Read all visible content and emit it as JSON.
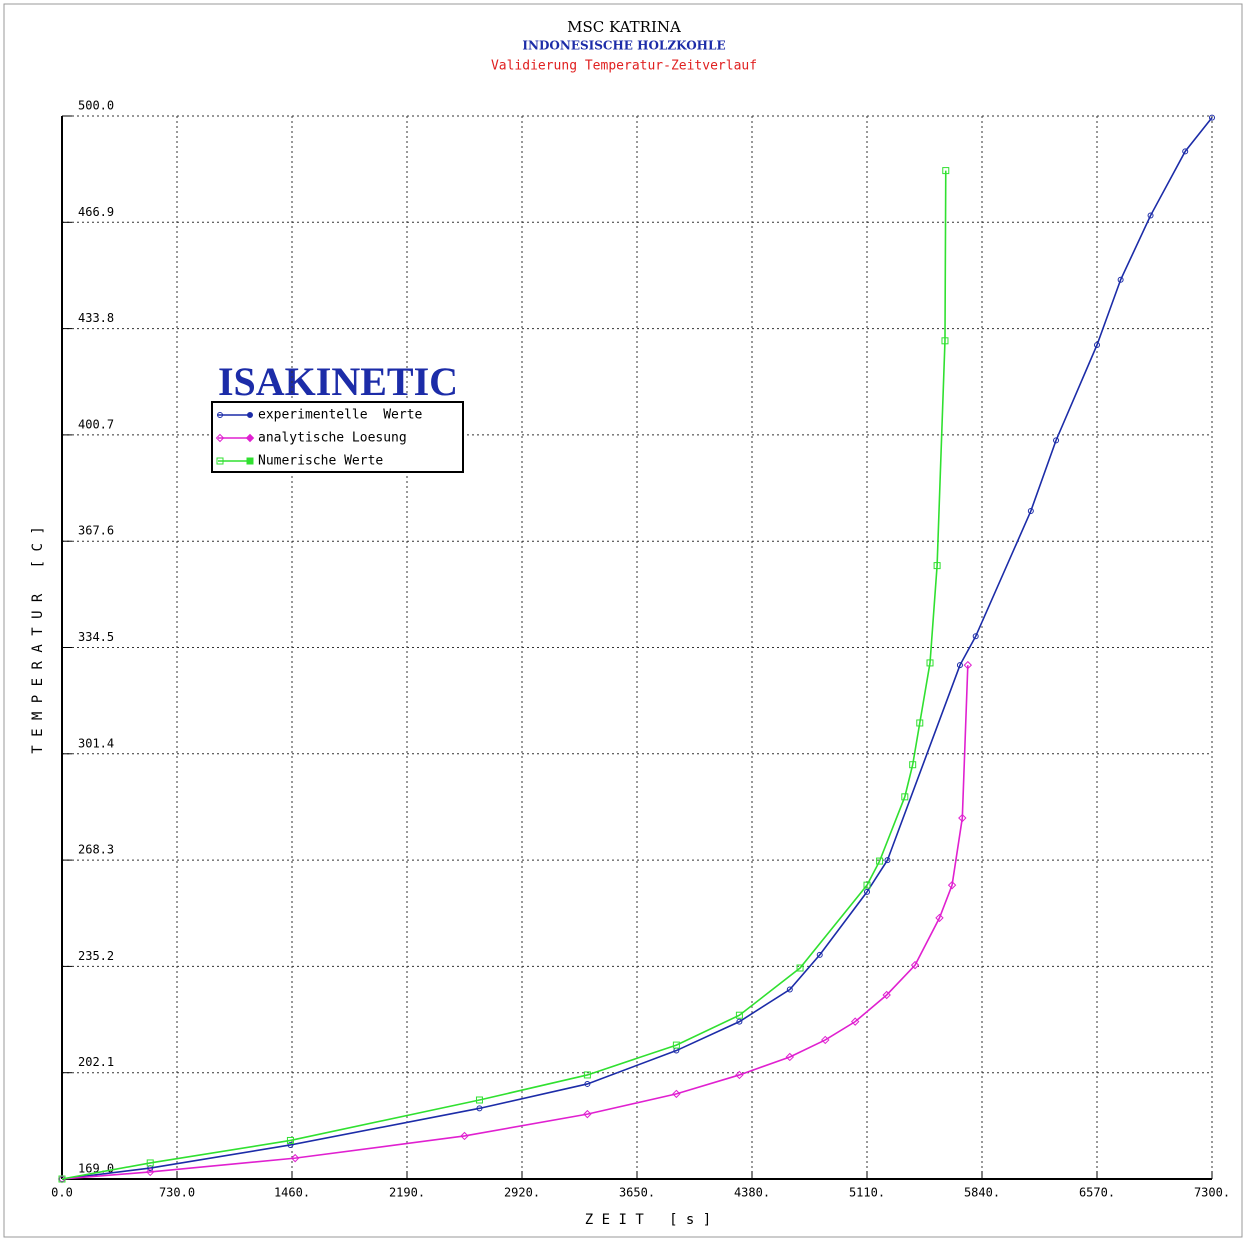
{
  "chart_data": {
    "type": "line",
    "title": "MSC KATRINA",
    "subtitle": "INDONESISCHE HOLZKOHLE",
    "subtitle2": "Validierung Temperatur-Zeitverlauf",
    "annotation": "ISAKINETIC",
    "x_label": "Z E I T   [ s ]",
    "y_label": "T E M P E R A T U R   [ C ]",
    "xlim": [
      0,
      7300
    ],
    "ylim": [
      169.0,
      500.0
    ],
    "xticks": [
      {
        "value": 0,
        "label": "0.0"
      },
      {
        "value": 730,
        "label": "730.0"
      },
      {
        "value": 1460,
        "label": "1460."
      },
      {
        "value": 2190,
        "label": "2190."
      },
      {
        "value": 2920,
        "label": "2920."
      },
      {
        "value": 3650,
        "label": "3650."
      },
      {
        "value": 4380,
        "label": "4380."
      },
      {
        "value": 5110,
        "label": "5110."
      },
      {
        "value": 5840,
        "label": "5840."
      },
      {
        "value": 6570,
        "label": "6570."
      },
      {
        "value": 7300,
        "label": "7300."
      }
    ],
    "yticks": [
      {
        "value": 169,
        "label": "169.0"
      },
      202.1,
      235.2,
      268.3,
      301.4,
      334.5,
      367.6,
      400.7,
      433.8,
      466.9,
      {
        "value": 500,
        "label": "500.0"
      }
    ],
    "grid": true,
    "legend": "upper left",
    "series": [
      {
        "name": "experimentelle  Werte",
        "color": "#1c2ca8",
        "marker": "circle",
        "x": [
          0,
          560,
          1450,
          2650,
          3335,
          3900,
          4300,
          4620,
          4810,
          5110,
          5240,
          5700,
          5800,
          6150,
          6310,
          6570,
          6720,
          6910,
          7130,
          7300
        ],
        "values": [
          169,
          172.4,
          179.6,
          191,
          198.6,
          209,
          218,
          228,
          238.8,
          258.4,
          268.3,
          329,
          338,
          377,
          399,
          428.7,
          449,
          469,
          489,
          499.5
        ]
      },
      {
        "name": "analytische Loesung",
        "color": "#e020d0",
        "marker": "diamond",
        "x": [
          0,
          560,
          1480,
          2555,
          3335,
          3900,
          4300,
          4620,
          4845,
          5035,
          5235,
          5415,
          5570,
          5650,
          5715,
          5750
        ],
        "values": [
          169,
          171.2,
          175.5,
          182.4,
          189.2,
          195.5,
          201.4,
          207,
          212.3,
          218,
          226.3,
          235.6,
          250.3,
          260.5,
          281.4,
          329
        ]
      },
      {
        "name": "Numerische Werte",
        "color": "#30e030",
        "marker": "square",
        "x": [
          0,
          560,
          1450,
          2650,
          3335,
          3900,
          4300,
          4685,
          5110,
          5190,
          5350,
          5400,
          5445,
          5510,
          5555,
          5605,
          5610
        ],
        "values": [
          169,
          174,
          181,
          193.6,
          201.4,
          210.7,
          220,
          234.7,
          260.5,
          268,
          288,
          298,
          311,
          329.7,
          360,
          430,
          483
        ]
      }
    ]
  }
}
